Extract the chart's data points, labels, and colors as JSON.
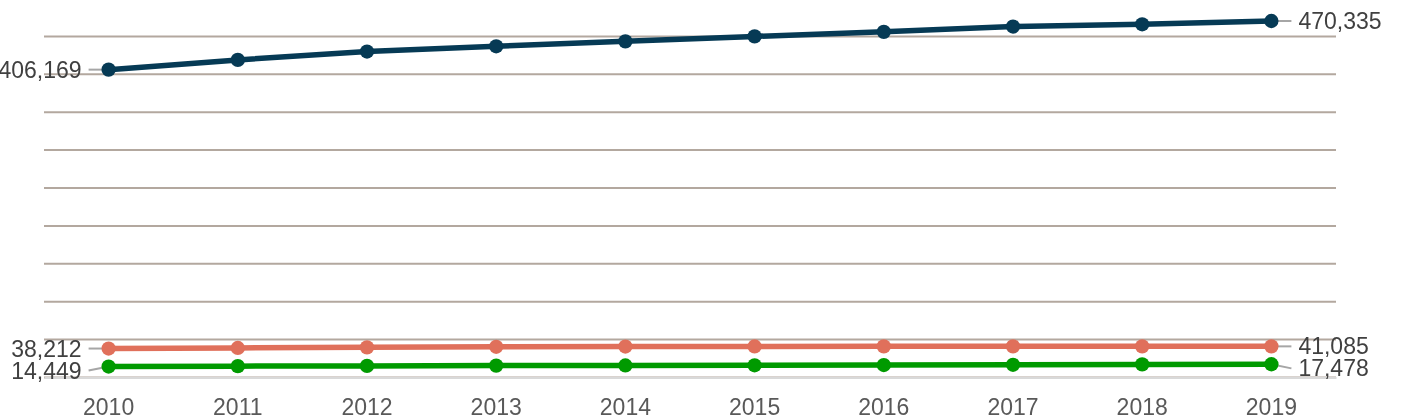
{
  "chart_data": {
    "type": "line",
    "categories": [
      "2010",
      "2011",
      "2012",
      "2013",
      "2014",
      "2015",
      "2016",
      "2017",
      "2018",
      "2019"
    ],
    "series": [
      {
        "color": "#063a55",
        "values": [
          406169,
          419000,
          430000,
          437000,
          443500,
          450000,
          456000,
          463000,
          466000,
          470335
        ],
        "value_labels": [
          "406,169",
          null,
          null,
          null,
          null,
          null,
          null,
          null,
          null,
          "470,335"
        ]
      },
      {
        "color": "#e0705b",
        "values": [
          38212,
          39000,
          39800,
          40500,
          40800,
          41000,
          41100,
          41100,
          41100,
          41085
        ],
        "value_labels": [
          "38,212",
          null,
          null,
          null,
          null,
          null,
          null,
          null,
          null,
          "41,085"
        ]
      },
      {
        "color": "#009a00",
        "values": [
          14449,
          15000,
          15300,
          15700,
          15900,
          16100,
          16400,
          16800,
          17300,
          17478
        ],
        "value_labels": [
          "14,449",
          null,
          null,
          null,
          null,
          null,
          null,
          null,
          null,
          "17,478"
        ]
      }
    ],
    "yticks": [
      {
        "value": 0,
        "label": null
      },
      {
        "value": 50000,
        "label": null
      },
      {
        "value": 100000,
        "label": null
      },
      {
        "value": 150000,
        "label": null
      },
      {
        "value": 200000,
        "label": null
      },
      {
        "value": 250000,
        "label": null
      },
      {
        "value": 300000,
        "label": null
      },
      {
        "value": 350000,
        "label": null
      },
      {
        "value": 400000,
        "label": null
      },
      {
        "value": 450000,
        "label": null
      }
    ],
    "grid": "y",
    "tick_labels": "x",
    "marker": "circle",
    "line_style": "solid"
  }
}
